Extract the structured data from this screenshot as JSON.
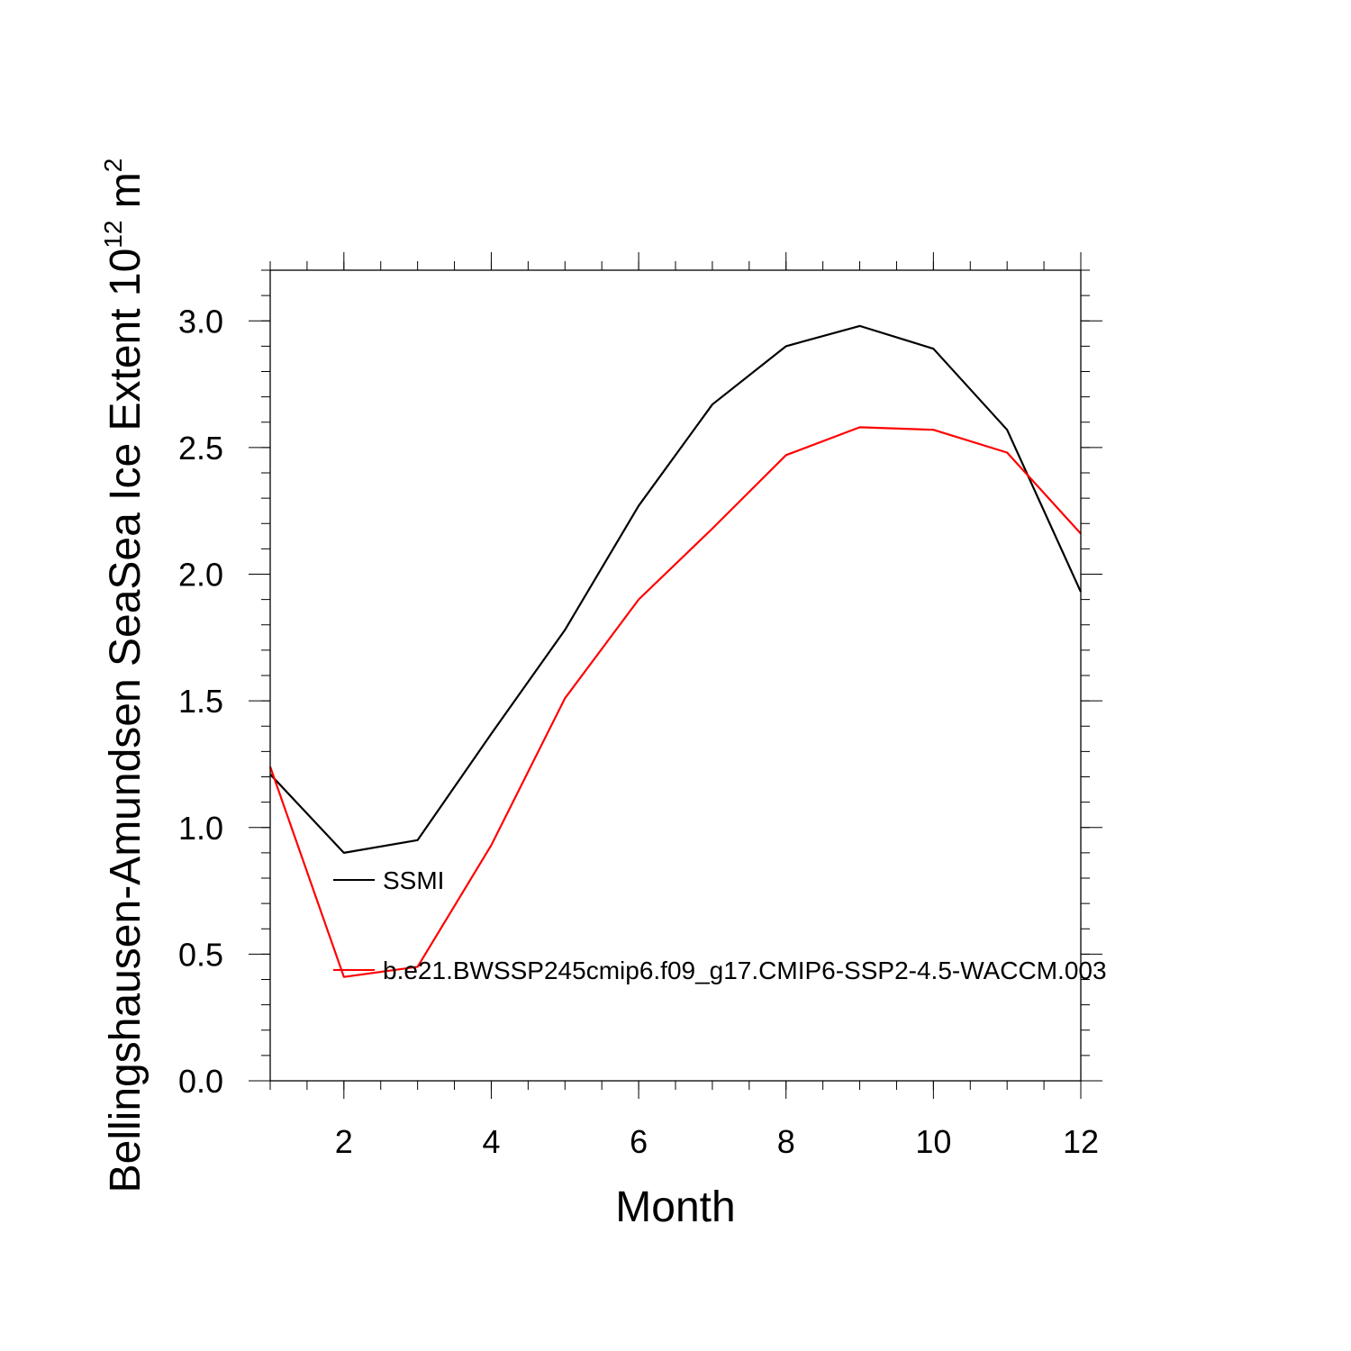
{
  "chart_data": {
    "type": "line",
    "xlabel": "Month",
    "ylabel_main": "Bellingshausen-Amundsen SeaSea Ice Extent 10",
    "ylabel_exp": "12",
    "ylabel_unit": " m",
    "ylabel_unit_exp": "2",
    "xlim": [
      1,
      12
    ],
    "ylim": [
      0.0,
      3.2
    ],
    "xticks": [
      2,
      4,
      6,
      8,
      10,
      12
    ],
    "xtick_labels": [
      "2",
      "4",
      "6",
      "8",
      "10",
      "12"
    ],
    "yticks": [
      0.0,
      0.5,
      1.0,
      1.5,
      2.0,
      2.5,
      3.0
    ],
    "ytick_labels": [
      "0.0",
      "0.5",
      "1.0",
      "1.5",
      "2.0",
      "2.5",
      "3.0"
    ],
    "x": [
      1,
      2,
      3,
      4,
      5,
      6,
      7,
      8,
      9,
      10,
      11,
      12
    ],
    "series": [
      {
        "name": "SSMI",
        "color": "#000000",
        "values": [
          1.21,
          0.9,
          0.95,
          1.37,
          1.78,
          2.27,
          2.67,
          2.9,
          2.98,
          2.89,
          2.57,
          1.93
        ]
      },
      {
        "name": "b.e21.BWSSP245cmip6.f09_g17.CMIP6-SSP2-4.5-WACCM.003",
        "color": "#ff0000",
        "values": [
          1.24,
          0.41,
          0.45,
          0.93,
          1.51,
          1.9,
          2.18,
          2.47,
          2.58,
          2.57,
          2.48,
          2.16
        ]
      }
    ]
  }
}
